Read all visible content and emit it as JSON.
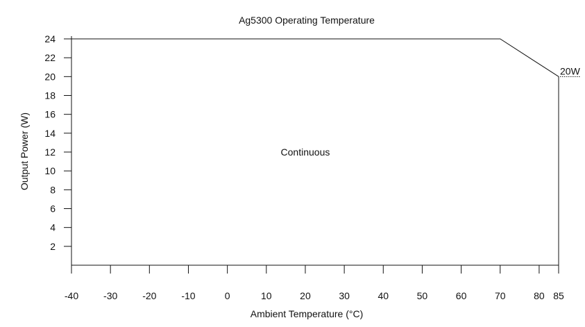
{
  "chart_data": {
    "type": "line",
    "title": "Ag5300 Operating Temperature",
    "xlabel": "Ambient Temperature (°C)",
    "ylabel": "Output Power (W)",
    "xlim": [
      -40,
      85
    ],
    "ylim": [
      0,
      24
    ],
    "x_ticks": [
      -40,
      -30,
      -20,
      -10,
      0,
      10,
      20,
      30,
      40,
      50,
      60,
      70,
      80,
      85
    ],
    "y_ticks": [
      2,
      4,
      6,
      8,
      10,
      12,
      14,
      16,
      18,
      20,
      22,
      24
    ],
    "grid": false,
    "series": [
      {
        "points": [
          {
            "x": -40,
            "y": 24
          },
          {
            "x": 70,
            "y": 24
          },
          {
            "x": 85,
            "y": 20
          },
          {
            "x": 85,
            "y": 0
          }
        ]
      }
    ],
    "annotations": [
      {
        "text": "Continuous",
        "x": 20,
        "y": 12
      },
      {
        "text": "20W",
        "x": 85,
        "y": 20
      }
    ]
  }
}
